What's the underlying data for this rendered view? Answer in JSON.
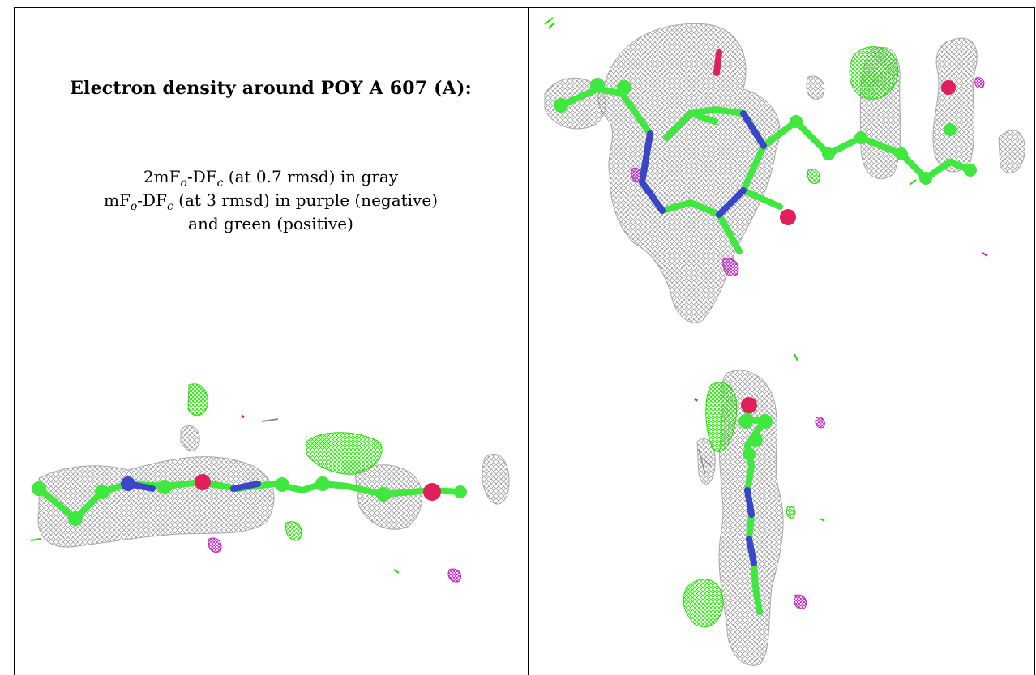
{
  "legend": {
    "title": "Electron density around POY A 607 (A):",
    "line1": {
      "a": "2mF",
      "a_sub": "o",
      "b": "-DF",
      "b_sub": "c",
      "rest": " (at 0.7 rmsd) in gray"
    },
    "line2": {
      "a": "mF",
      "a_sub": "o",
      "b": "-DF",
      "b_sub": "c",
      "rest": " (at 3 rmsd) in purple (negative)"
    },
    "line3": "and green (positive)"
  },
  "colors": {
    "mesh_gray": "#9a9a9a",
    "positive_green": "#22e000",
    "negative_purple": "#c020c0",
    "carbon_green": "#3ee83e",
    "nitrogen_blue": "#3a45c8",
    "oxygen_red": "#e0205a",
    "border": "#000000"
  },
  "views": [
    "view-top-right",
    "view-bottom-left",
    "view-bottom-right"
  ]
}
